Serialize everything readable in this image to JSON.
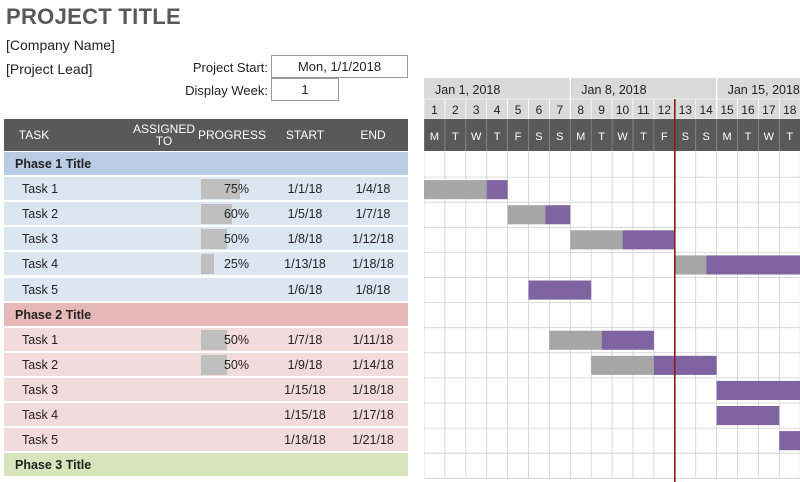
{
  "project": {
    "title": "PROJECT TITLE",
    "company": "[Company Name]",
    "lead": "[Project Lead]",
    "start_label": "Project Start:",
    "start_value": "Mon, 1/1/2018",
    "week_label": "Display Week:",
    "week_value": "1"
  },
  "columns": {
    "task": "TASK",
    "assigned": "ASSIGNED\nTO",
    "progress": "PROGRESS",
    "start": "START",
    "end": "END"
  },
  "colors": {
    "header_bg": "#595959",
    "phase1": "#b8cce4",
    "phase1_row": "#dce6f1",
    "phase2": "#e6b8b7",
    "phase2_row": "#f2dcdb",
    "phase3": "#d8e4bc",
    "bar_done": "#a6a6a6",
    "bar_todo": "#8064a2",
    "today_line": "#8b1a1a"
  },
  "weeks": [
    "Jan 1, 2018",
    "Jan 8, 2018",
    "Jan 15, 2018"
  ],
  "days": [
    "1",
    "2",
    "3",
    "4",
    "5",
    "6",
    "7",
    "8",
    "9",
    "10",
    "11",
    "12",
    "13",
    "14",
    "15",
    "16",
    "17",
    "18"
  ],
  "weekdays": [
    "M",
    "T",
    "W",
    "T",
    "F",
    "S",
    "S",
    "M",
    "T",
    "W",
    "T",
    "F",
    "S",
    "S",
    "M",
    "T",
    "W",
    "T"
  ],
  "today_day": 13,
  "rows": [
    {
      "type": "phase",
      "phase": 1,
      "label": "Phase 1 Title"
    },
    {
      "type": "task",
      "phase": 1,
      "name": "Task 1",
      "progress": 75,
      "progress_text": "75%",
      "start": "1/1/18",
      "end": "1/4/18",
      "start_day": 1,
      "end_day": 4
    },
    {
      "type": "task",
      "phase": 1,
      "name": "Task 2",
      "progress": 60,
      "progress_text": "60%",
      "start": "1/5/18",
      "end": "1/7/18",
      "start_day": 5,
      "end_day": 7
    },
    {
      "type": "task",
      "phase": 1,
      "name": "Task 3",
      "progress": 50,
      "progress_text": "50%",
      "start": "1/8/18",
      "end": "1/12/18",
      "start_day": 8,
      "end_day": 12
    },
    {
      "type": "task",
      "phase": 1,
      "name": "Task 4",
      "progress": 25,
      "progress_text": "25%",
      "start": "1/13/18",
      "end": "1/18/18",
      "start_day": 13,
      "end_day": 18
    },
    {
      "type": "task",
      "phase": 1,
      "name": "Task 5",
      "progress": 0,
      "progress_text": "",
      "start": "1/6/18",
      "end": "1/8/18",
      "start_day": 6,
      "end_day": 8
    },
    {
      "type": "phase",
      "phase": 2,
      "label": "Phase 2 Title"
    },
    {
      "type": "task",
      "phase": 2,
      "name": "Task 1",
      "progress": 50,
      "progress_text": "50%",
      "start": "1/7/18",
      "end": "1/11/18",
      "start_day": 7,
      "end_day": 11
    },
    {
      "type": "task",
      "phase": 2,
      "name": "Task 2",
      "progress": 50,
      "progress_text": "50%",
      "start": "1/9/18",
      "end": "1/14/18",
      "start_day": 9,
      "end_day": 14
    },
    {
      "type": "task",
      "phase": 2,
      "name": "Task 3",
      "progress": 0,
      "progress_text": "",
      "start": "1/15/18",
      "end": "1/18/18",
      "start_day": 15,
      "end_day": 18
    },
    {
      "type": "task",
      "phase": 2,
      "name": "Task 4",
      "progress": 0,
      "progress_text": "",
      "start": "1/15/18",
      "end": "1/17/18",
      "start_day": 15,
      "end_day": 17
    },
    {
      "type": "task",
      "phase": 2,
      "name": "Task 5",
      "progress": 0,
      "progress_text": "",
      "start": "1/18/18",
      "end": "1/21/18",
      "start_day": 18,
      "end_day": 21
    },
    {
      "type": "phase",
      "phase": 3,
      "label": "Phase 3 Title"
    }
  ]
}
